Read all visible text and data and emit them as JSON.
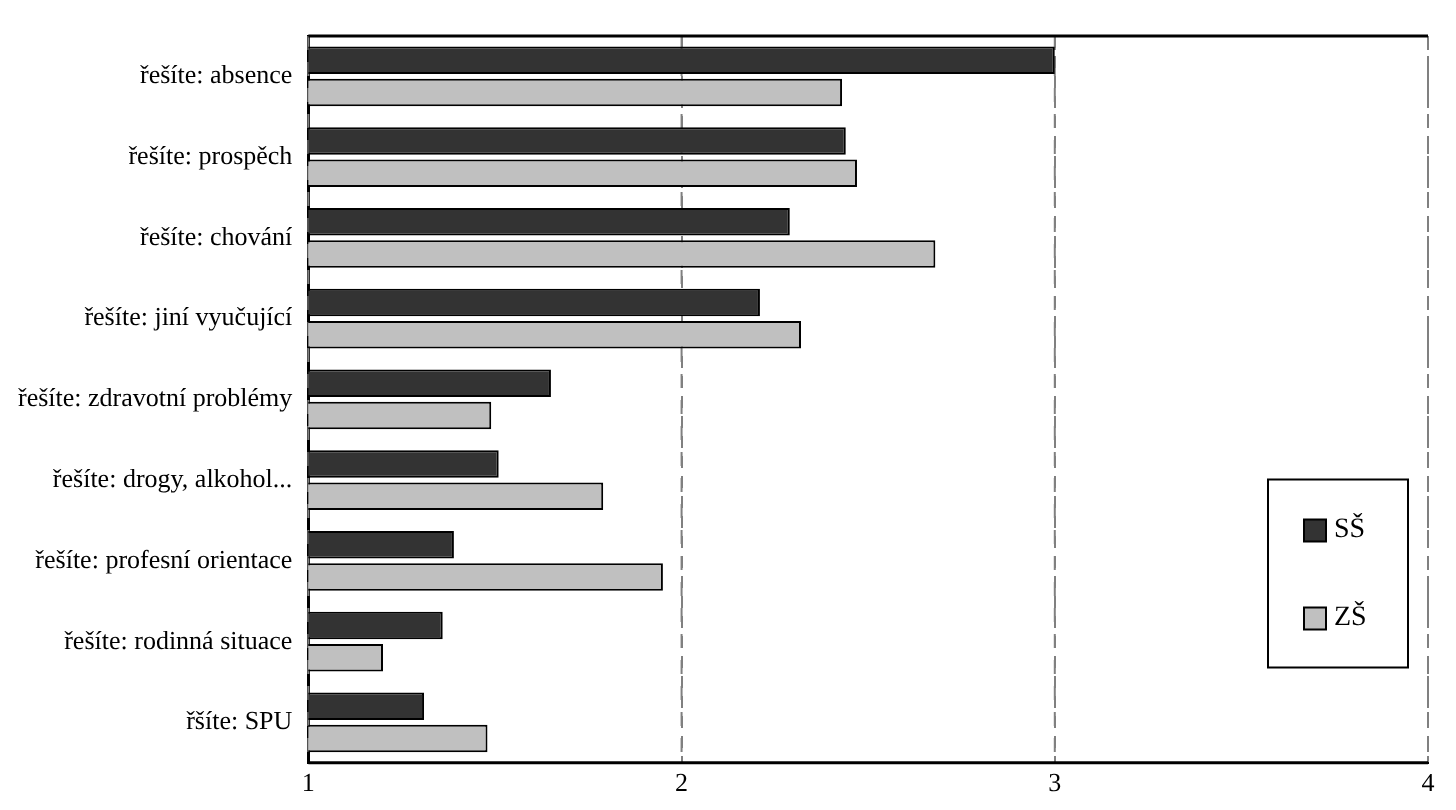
{
  "chart_data": {
    "type": "bar",
    "orientation": "horizontal",
    "categories": [
      "řešíte: absence",
      "řešíte: prospěch",
      "řešíte: chování",
      "řešíte: jiní vyučující",
      "řešíte: zdravotní problémy",
      "řešíte: drogy, alkohol...",
      "řešíte: profesní orientace",
      "řešíte: rodinná situace",
      "řšíte: SPU"
    ],
    "series": [
      {
        "name": "SŠ",
        "color": "#333333",
        "values": [
          3.0,
          2.44,
          2.29,
          2.21,
          1.65,
          1.51,
          1.39,
          1.36,
          1.31
        ]
      },
      {
        "name": "ZŠ",
        "color": "#c0c0c0",
        "values": [
          2.43,
          2.47,
          2.68,
          2.32,
          1.49,
          1.79,
          1.95,
          1.2,
          1.48
        ]
      }
    ],
    "xlim": [
      1,
      4
    ],
    "xticks": [
      1,
      2,
      3,
      4
    ],
    "grid": "x",
    "legend": "right"
  }
}
